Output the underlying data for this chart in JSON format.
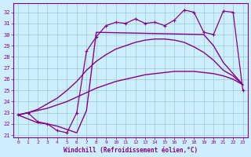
{
  "xlabel": "Windchill (Refroidissement éolien,°C)",
  "background_color": "#cceeff",
  "line_color": "#880088",
  "xlim": [
    -0.5,
    23.5
  ],
  "ylim": [
    20.8,
    32.8
  ],
  "yticks": [
    21,
    22,
    23,
    24,
    25,
    26,
    27,
    28,
    29,
    30,
    31,
    32
  ],
  "xticks": [
    0,
    1,
    2,
    3,
    4,
    5,
    6,
    7,
    8,
    9,
    10,
    11,
    12,
    13,
    14,
    15,
    16,
    17,
    18,
    19,
    20,
    21,
    22,
    23
  ],
  "series": [
    {
      "x": [
        0,
        1,
        2,
        3,
        4,
        5,
        6,
        7,
        8,
        9,
        10,
        11,
        12,
        13,
        14,
        15,
        16,
        17,
        18,
        19,
        20,
        21,
        22,
        23
      ],
      "y": [
        22.8,
        23.0,
        23.2,
        23.4,
        23.7,
        24.0,
        24.4,
        24.8,
        25.2,
        25.5,
        25.8,
        26.0,
        26.2,
        26.4,
        26.5,
        26.6,
        26.7,
        26.7,
        26.7,
        26.6,
        26.5,
        26.3,
        26.0,
        25.5
      ],
      "marker": null,
      "linewidth": 1.0,
      "linestyle": "-"
    },
    {
      "x": [
        0,
        1,
        2,
        3,
        4,
        5,
        6,
        7,
        8,
        9,
        10,
        11,
        12,
        13,
        14,
        15,
        16,
        17,
        18,
        19,
        20,
        21,
        22,
        23
      ],
      "y": [
        22.8,
        23.0,
        23.3,
        23.8,
        24.3,
        25.0,
        25.8,
        26.8,
        27.6,
        28.2,
        28.7,
        29.0,
        29.3,
        29.5,
        29.6,
        29.6,
        29.5,
        29.3,
        28.9,
        28.4,
        27.7,
        26.8,
        26.3,
        25.5
      ],
      "marker": null,
      "linewidth": 1.0,
      "linestyle": "-"
    },
    {
      "x": [
        0,
        1,
        2,
        3,
        4,
        5,
        6,
        7,
        8,
        9,
        10,
        11,
        12,
        13,
        14,
        15,
        16,
        17,
        18,
        19,
        20,
        21,
        22,
        23
      ],
      "y": [
        22.8,
        23.0,
        22.2,
        22.0,
        21.4,
        21.2,
        23.0,
        28.5,
        29.8,
        30.8,
        31.1,
        31.0,
        31.4,
        31.0,
        31.1,
        30.8,
        31.3,
        32.2,
        32.0,
        30.2,
        30.0,
        32.1,
        32.0,
        25.0
      ],
      "marker": "+",
      "linewidth": 0.9,
      "linestyle": "-"
    },
    {
      "x": [
        0,
        2,
        3,
        4,
        5,
        6,
        7,
        8,
        19,
        20,
        21,
        22,
        23
      ],
      "y": [
        22.8,
        22.1,
        22.0,
        21.8,
        21.5,
        21.2,
        23.2,
        30.2,
        30.0,
        29.0,
        27.5,
        26.5,
        25.5
      ],
      "marker": null,
      "linewidth": 1.0,
      "linestyle": "-"
    }
  ]
}
